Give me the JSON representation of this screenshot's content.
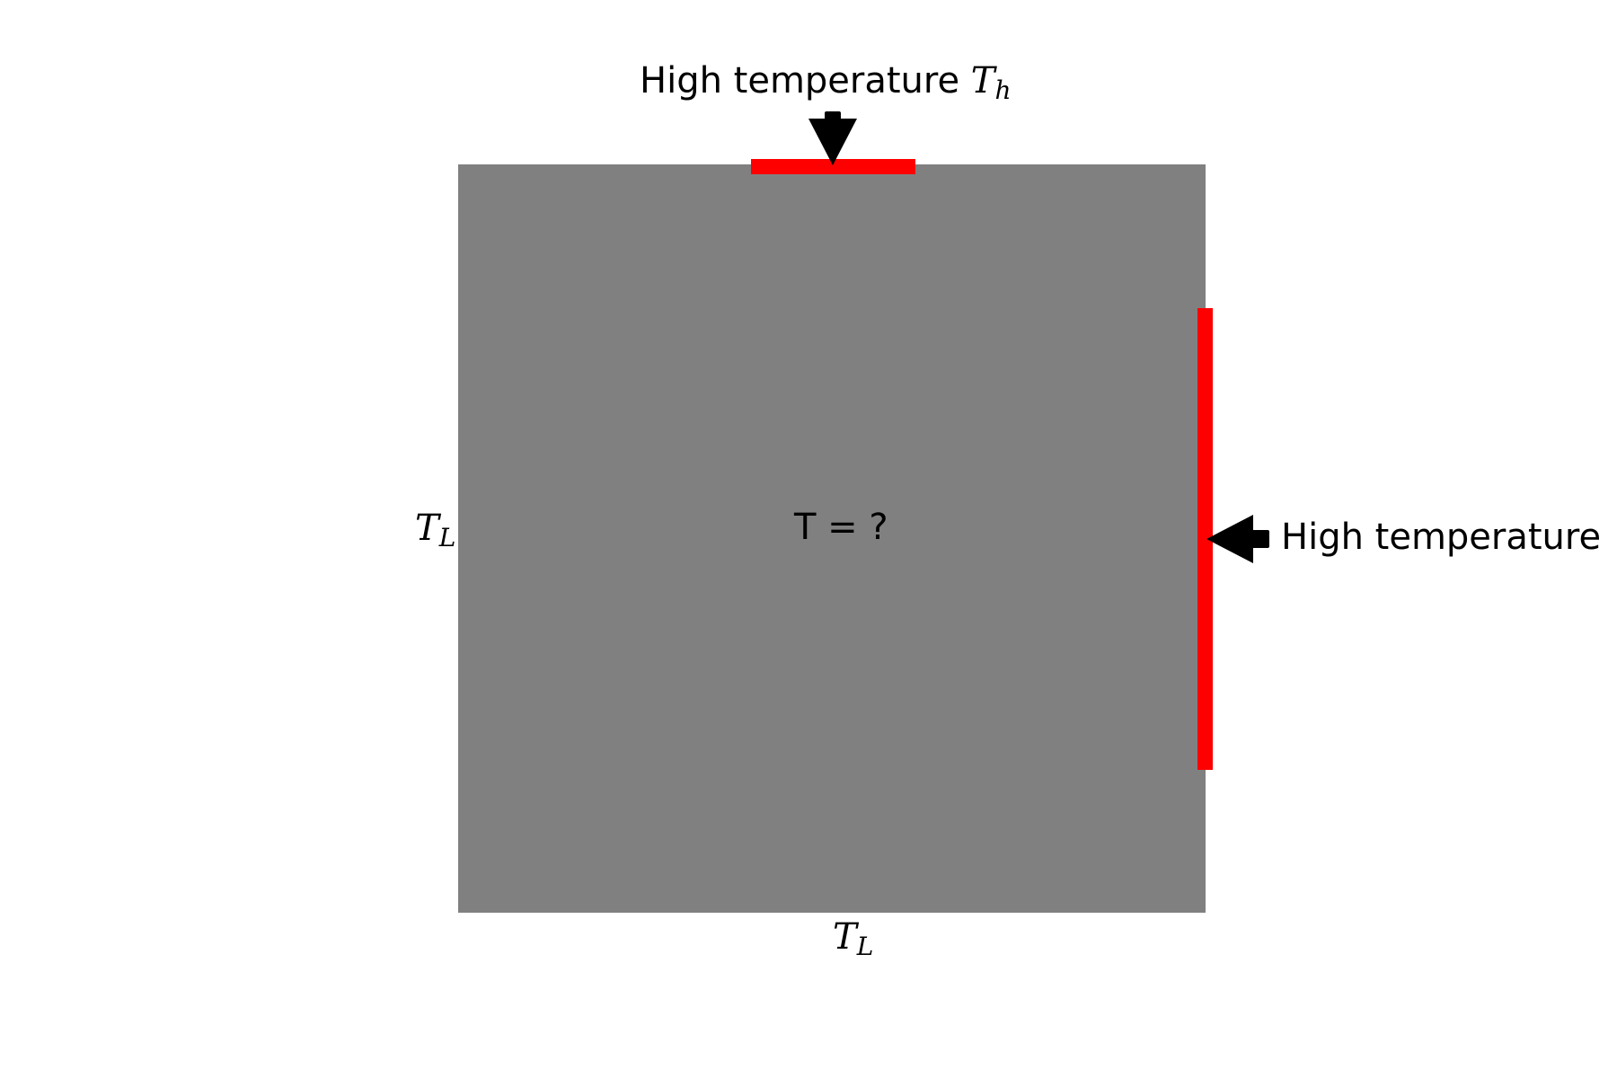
{
  "boundaries": {
    "top": {
      "label": "High temperature",
      "symbol": "T",
      "subscript": "h",
      "color": "#ff0000"
    },
    "right": {
      "label": "High temperature",
      "color": "#ff0000"
    },
    "left": {
      "symbol": "T",
      "subscript": "L"
    },
    "bottom": {
      "symbol": "T",
      "subscript": "L"
    }
  },
  "domain_region": {
    "label": "T = ?",
    "color": "#808080"
  },
  "arrows": {
    "top": "arrow-down-icon",
    "right": "arrow-left-icon",
    "color": "#000000"
  }
}
